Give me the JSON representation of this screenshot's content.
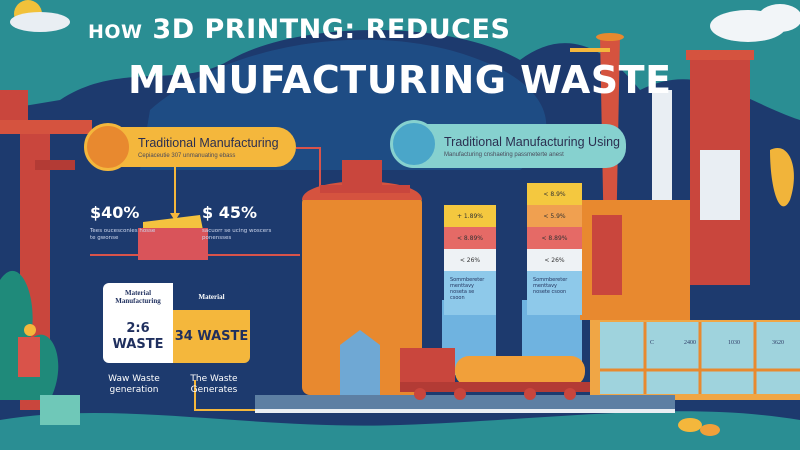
{
  "title": {
    "line1_prefix": "HOW",
    "line1_main": "3D PRINTNG: REDUCES",
    "line2": "MANUFACTURING WASTE"
  },
  "left_panel": {
    "heading": "Traditional Manufacturing",
    "subtext": "Cepiaceutie 307 unmanuating ebass",
    "stats": [
      {
        "value": "$40%",
        "note": "Tees oucesconies hosse te gwonse"
      },
      {
        "value": "$ 45%",
        "note": "sacuorr se ucing woscers ponensses"
      }
    ],
    "table": {
      "headers": [
        "Material Manufacturing",
        "Material"
      ],
      "values": [
        "2:6 WASTE",
        "34 WASTE"
      ]
    },
    "captions": [
      "Waw Waste generation",
      "The Waste Generates"
    ]
  },
  "right_panel": {
    "heading": "Traditional Manufacturing Using",
    "subtext": "Manufacturing cnshaeting passmeterte anest"
  },
  "towers": [
    {
      "bands": [
        "+ 1.89%",
        "< 8.89%",
        "< 26%"
      ],
      "note": "Sommbereter menttavy noseta se csoon"
    },
    {
      "bands": [
        "< 8.9%",
        "< 5.9%",
        "< 8.89%",
        "< 26%"
      ],
      "note": "Sommbereter menttavy nosete csoon"
    }
  ],
  "factory_panels": [
    "C",
    "2400",
    "1030",
    "3620"
  ],
  "colors": {
    "background_navy": "#1d3a6e",
    "sky_teal": "#2a8e93",
    "accent_yellow": "#f4b73c",
    "accent_orange": "#e8892f",
    "accent_red": "#d9534a",
    "accent_mint": "#86d1cf"
  }
}
